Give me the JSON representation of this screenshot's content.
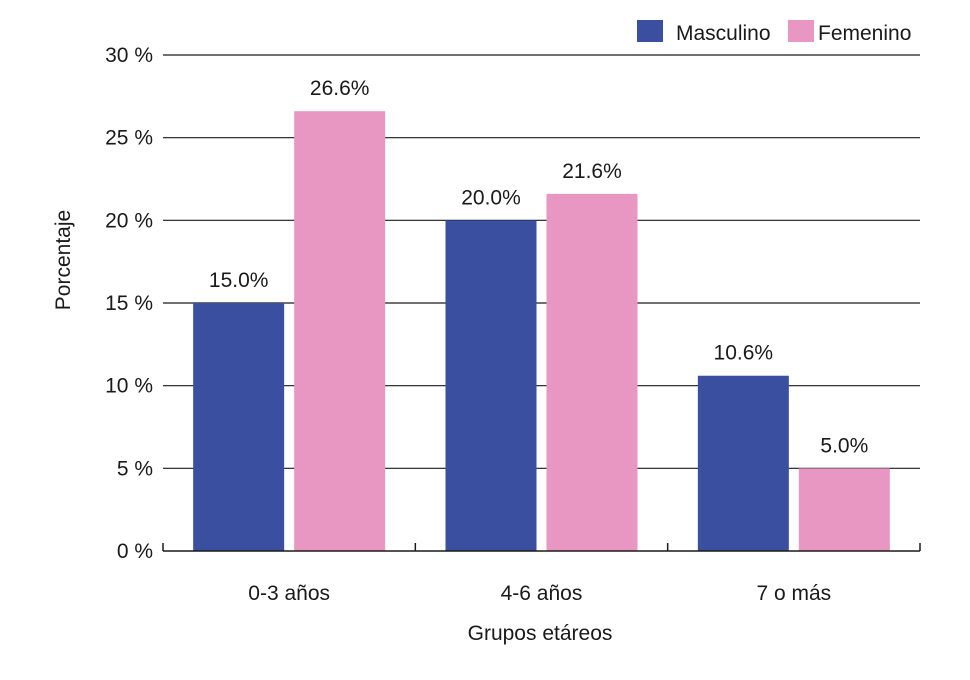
{
  "chart_data": {
    "type": "bar",
    "categories": [
      "0-3 años",
      "4-6 años",
      "7 o más"
    ],
    "series": [
      {
        "name": "Masculino",
        "values": [
          15.0,
          20.0,
          10.6
        ],
        "labels": [
          "15.0%",
          "20.0%",
          "10.6%"
        ],
        "color": "#3a4fa0"
      },
      {
        "name": "Femenino",
        "values": [
          26.6,
          21.6,
          5.0
        ],
        "labels": [
          "26.6%",
          "21.6%",
          "5.0%"
        ],
        "color": "#e896c2"
      }
    ],
    "xlabel": "Grupos etáreos",
    "ylabel": "Porcentaje",
    "ylim": [
      0,
      30
    ],
    "yticks": [
      0,
      5,
      10,
      15,
      20,
      25,
      30
    ],
    "ytick_labels": [
      "0 %",
      "5 %",
      "10 %",
      "15 %",
      "20 %",
      "25 %",
      "30 %"
    ],
    "grid": true,
    "legend_position": "top-right"
  }
}
